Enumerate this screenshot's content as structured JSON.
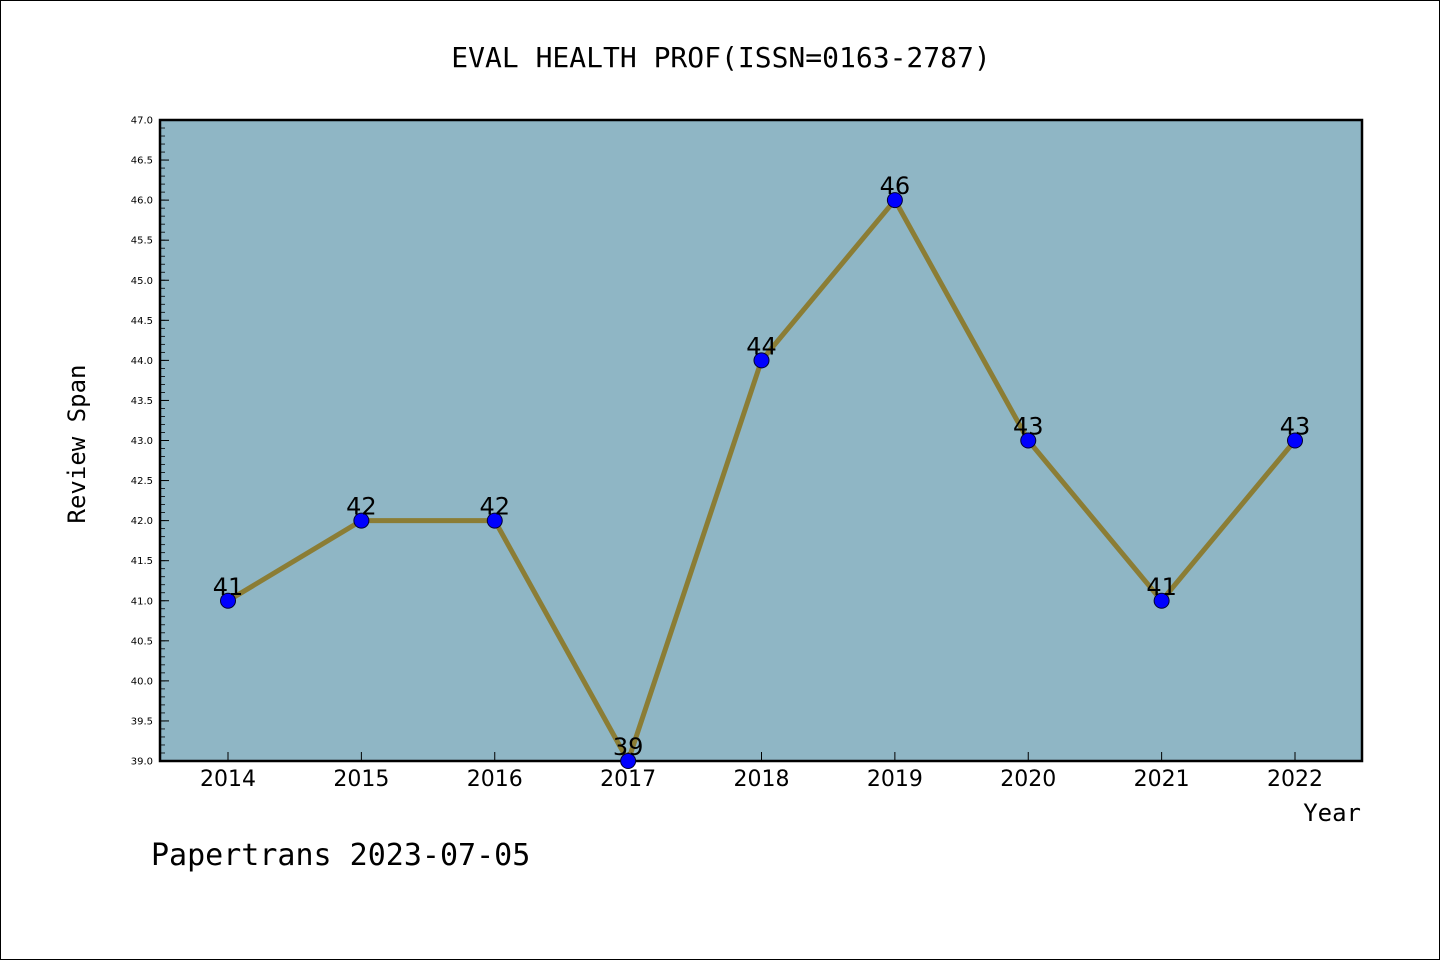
{
  "chart_data": {
    "type": "line",
    "title": "EVAL HEALTH PROF(ISSN=0163-2787)",
    "xlabel": "Year",
    "ylabel": "Review Span",
    "categories": [
      "2014",
      "2015",
      "2016",
      "2017",
      "2018",
      "2019",
      "2020",
      "2021",
      "2022"
    ],
    "series": [
      {
        "values": [
          41,
          42,
          42,
          39,
          44,
          46,
          43,
          41,
          43
        ],
        "data_labels": [
          "41",
          "42",
          "42",
          "39",
          "44",
          "46",
          "43",
          "41",
          "43"
        ]
      }
    ],
    "ylim": [
      39.0,
      47.0
    ],
    "yticks": [
      "39.0",
      "39.5",
      "40.0",
      "40.5",
      "41.0",
      "41.5",
      "42.0",
      "42.5",
      "43.0",
      "43.5",
      "44.0",
      "44.5",
      "45.0",
      "45.5",
      "46.0",
      "46.5",
      "47.0"
    ],
    "grid": false,
    "legend": false,
    "colors": {
      "plot_background": "#8fb6c5",
      "line": "#8b7d35",
      "marker": "#0000ff"
    }
  },
  "footer": "Papertrans 2023-07-05"
}
